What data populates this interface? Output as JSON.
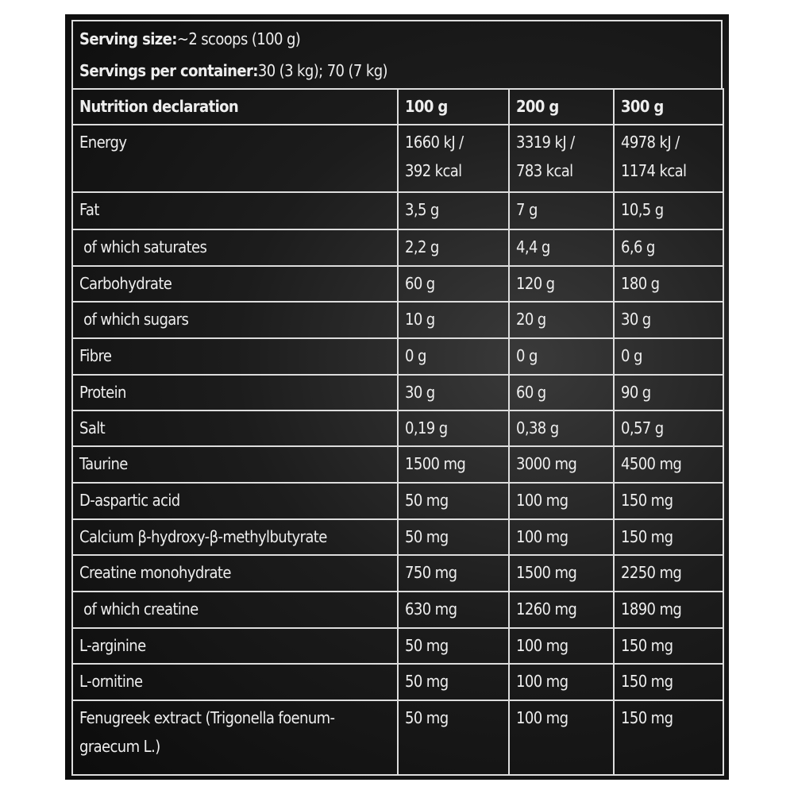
{
  "header": {
    "serving_size": {
      "label": "Serving size:",
      "value": "~2 scoops (100 g)"
    },
    "servings_per_container": {
      "label": "Servings per container:",
      "value": "30 (3 kg); 70 (7 kg)"
    }
  },
  "table": {
    "columns": [
      "Nutrition declaration",
      "100 g",
      "200 g",
      "300 g"
    ],
    "rows": [
      [
        [
          "Energy"
        ],
        [
          "1660 kJ /",
          "392 kcal"
        ],
        [
          "3319 kJ /",
          "783 kcal"
        ],
        [
          "4978 kJ /",
          "1174 kcal"
        ]
      ],
      [
        [
          "Fat"
        ],
        [
          "3,5 g"
        ],
        [
          "7 g"
        ],
        [
          "10,5 g"
        ]
      ],
      [
        [
          " of which saturates"
        ],
        [
          "2,2 g"
        ],
        [
          "4,4 g"
        ],
        [
          "6,6 g"
        ]
      ],
      [
        [
          "Carbohydrate"
        ],
        [
          "60 g"
        ],
        [
          "120 g"
        ],
        [
          "180 g"
        ]
      ],
      [
        [
          " of which sugars"
        ],
        [
          "10 g"
        ],
        [
          "20 g"
        ],
        [
          "30 g"
        ]
      ],
      [
        [
          "Fibre"
        ],
        [
          "0 g"
        ],
        [
          "0 g"
        ],
        [
          "0 g"
        ]
      ],
      [
        [
          "Protein"
        ],
        [
          "30 g"
        ],
        [
          "60 g"
        ],
        [
          "90 g"
        ]
      ],
      [
        [
          "Salt"
        ],
        [
          "0,19 g"
        ],
        [
          "0,38 g"
        ],
        [
          "0,57 g"
        ]
      ],
      [
        [
          "Taurine"
        ],
        [
          "1500 mg"
        ],
        [
          "3000 mg"
        ],
        [
          "4500 mg"
        ]
      ],
      [
        [
          "D-aspartic acid"
        ],
        [
          "50 mg"
        ],
        [
          "100 mg"
        ],
        [
          "150 mg"
        ]
      ],
      [
        [
          "Calcium β-hydroxy-β-methylbutyrate"
        ],
        [
          "50 mg"
        ],
        [
          "100 mg"
        ],
        [
          "150 mg"
        ]
      ],
      [
        [
          "Creatine monohydrate"
        ],
        [
          "750 mg"
        ],
        [
          "1500 mg"
        ],
        [
          "2250 mg"
        ]
      ],
      [
        [
          " of which creatine"
        ],
        [
          "630 mg"
        ],
        [
          "1260 mg"
        ],
        [
          "1890 mg"
        ]
      ],
      [
        [
          "L-arginine"
        ],
        [
          "50 mg"
        ],
        [
          "100 mg"
        ],
        [
          "150 mg"
        ]
      ],
      [
        [
          "L-ornitine"
        ],
        [
          "50 mg"
        ],
        [
          "100 mg"
        ],
        [
          "150 mg"
        ]
      ],
      [
        [
          "Fenugreek extract (Trigonella foenum-",
          "graecum L.)"
        ],
        [
          "50 mg"
        ],
        [
          "100 mg"
        ],
        [
          "150 mg"
        ]
      ]
    ]
  }
}
